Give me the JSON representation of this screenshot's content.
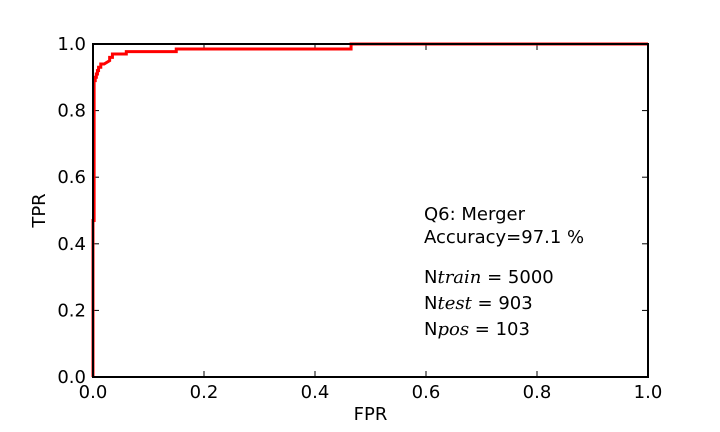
{
  "chart_data": {
    "type": "line",
    "title": "",
    "xlabel": "FPR",
    "ylabel": "TPR",
    "xlim": [
      0.0,
      1.0
    ],
    "ylim": [
      0.0,
      1.0
    ],
    "xticks": [
      "0.0",
      "0.2",
      "0.4",
      "0.6",
      "0.8",
      "1.0"
    ],
    "yticks": [
      "0.0",
      "0.2",
      "0.4",
      "0.6",
      "0.8",
      "1.0"
    ],
    "grid": false,
    "series": [
      {
        "color": "#ff0000",
        "x": [
          0.0,
          0.0,
          0.002,
          0.002,
          0.004,
          0.004,
          0.006,
          0.006,
          0.008,
          0.008,
          0.01,
          0.01,
          0.014,
          0.014,
          0.02,
          0.02,
          0.03,
          0.03,
          0.035,
          0.035,
          0.06,
          0.06,
          0.15,
          0.15,
          0.465,
          0.465,
          1.0
        ],
        "y": [
          0.0,
          0.47,
          0.47,
          0.89,
          0.89,
          0.9,
          0.9,
          0.91,
          0.91,
          0.92,
          0.92,
          0.93,
          0.93,
          0.94,
          0.94,
          0.94,
          0.95,
          0.96,
          0.96,
          0.97,
          0.97,
          0.977,
          0.977,
          0.985,
          0.985,
          1.0,
          1.0
        ]
      }
    ],
    "annotations": {
      "line1": "Q6: Merger",
      "line2": "Accuracy=97.1 %",
      "ntrain": {
        "prefix": "N",
        "sub": "train",
        "value": " = 5000"
      },
      "ntest": {
        "prefix": "N",
        "sub": "test",
        "value": " = 903"
      },
      "npos": {
        "prefix": "N",
        "sub": "pos",
        "value": " = 103"
      }
    }
  }
}
